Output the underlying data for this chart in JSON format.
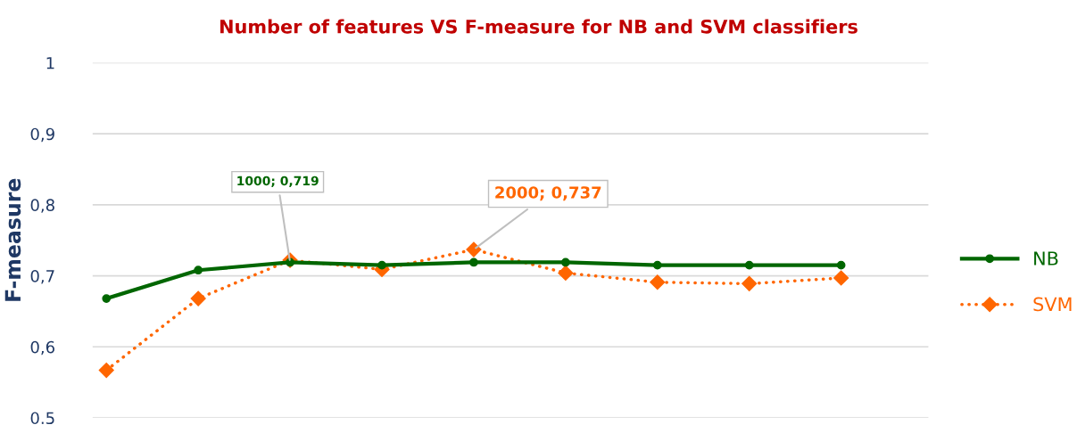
{
  "chart_data": {
    "type": "line",
    "title": "Number of features VS F-measure for NB and SVM classifiers",
    "ylabel": "F-measure",
    "categories": [
      null,
      null,
      null,
      null,
      null,
      null,
      null,
      null,
      null
    ],
    "series": [
      {
        "name": "NB",
        "color": "#006600",
        "marker": "circle",
        "line_style": "solid",
        "values": [
          0.668,
          0.708,
          0.719,
          0.715,
          0.719,
          0.719,
          0.715,
          0.715,
          0.715
        ]
      },
      {
        "name": "SVM",
        "color": "#ff6600",
        "marker": "diamond",
        "line_style": "dotted",
        "values": [
          0.567,
          0.668,
          0.722,
          0.709,
          0.737,
          0.704,
          0.691,
          0.689,
          0.697
        ]
      }
    ],
    "annotations": [
      "1000; 0,719",
      "2000; 0,737"
    ],
    "ylim": [
      0.5,
      1
    ],
    "yticks": [
      {
        "value": 0.5,
        "label": "0.5"
      },
      {
        "value": 0.6,
        "label": "0,6"
      },
      {
        "value": 0.7,
        "label": "0,7"
      },
      {
        "value": 0.8,
        "label": "0,8"
      },
      {
        "value": 0.9,
        "label": "0,9"
      },
      {
        "value": 1,
        "label": "1"
      }
    ],
    "tick_labels": "y",
    "grid": "y",
    "legend": "right"
  }
}
